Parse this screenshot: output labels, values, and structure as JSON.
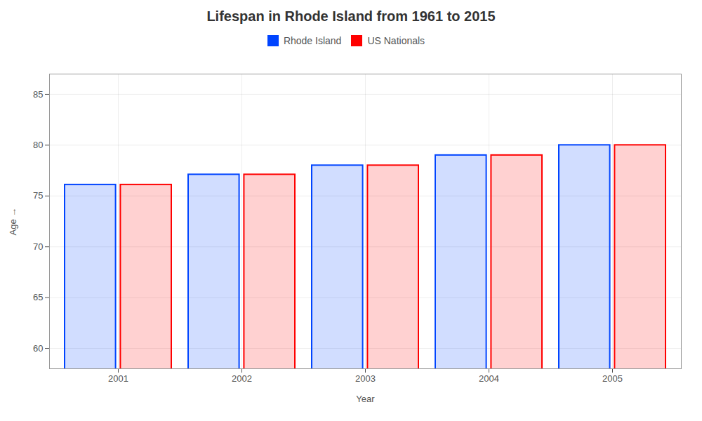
{
  "chart_data": {
    "type": "bar",
    "title": "Lifespan in Rhode Island from 1961 to 2015",
    "xlabel": "Year",
    "ylabel": "Age",
    "categories": [
      "2001",
      "2002",
      "2003",
      "2004",
      "2005"
    ],
    "series": [
      {
        "name": "Rhode Island",
        "color": "#0044ff",
        "values": [
          76.1,
          77.1,
          78.0,
          79.0,
          80.0
        ]
      },
      {
        "name": "US Nationals",
        "color": "#ff0000",
        "values": [
          76.1,
          77.1,
          78.0,
          79.0,
          80.0
        ]
      }
    ],
    "ylim": [
      58,
      87
    ],
    "yticks": [
      60,
      65,
      70,
      75,
      80,
      85
    ],
    "grid": true,
    "legend": "upper center"
  }
}
